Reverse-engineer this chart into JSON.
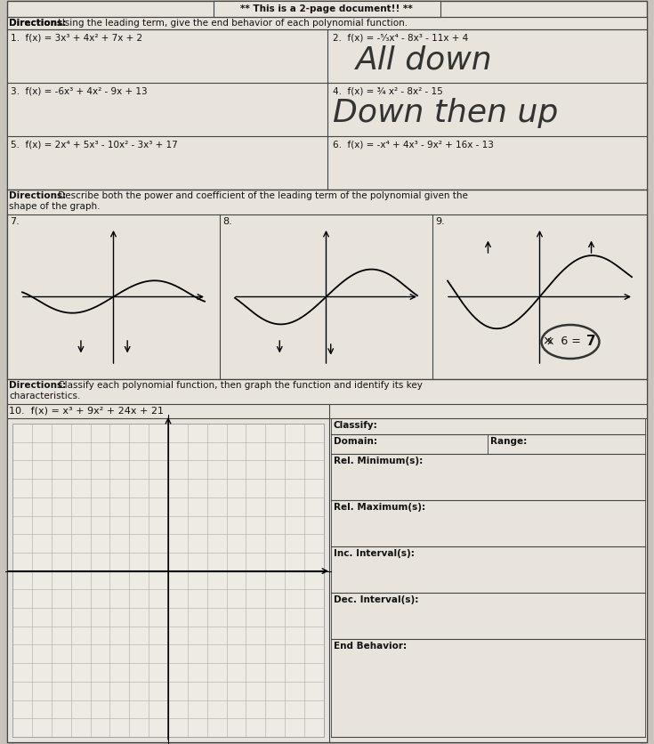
{
  "bg_color": "#c8c4bc",
  "paper_color": "#e8e4dc",
  "title_text": "** This is a 2-page document!! **",
  "s1_dir_bold": "Directions:",
  "s1_dir_rest": " Using the leading term, give the end behavior of each polynomial function.",
  "p1": "1.  f(x) = 3x³ + 4x² + 7x + 2",
  "p2": "2.  f(x) = -⁵⁄₃x⁴ - 8x³ - 11x + 4",
  "p2_answer": "All down",
  "p3": "3.  f(x) = -6x³ + 4x² - 9x + 13",
  "p4": "4.  f(x) = ¾ x² - 8x² - 15",
  "p4_answer": "Down then up",
  "p5": "5.  f(x) = 2x⁴ + 5x³ - 10x² - 3x³ + 17",
  "p6": "6.  f(x) = -x⁴ + 4x³ - 9x² + 16x - 13",
  "s2_dir_bold": "Directions:",
  "s2_dir_rest": " Describe both the power and coefficient of the leading term of the polynomial given the shape of the graph.",
  "s3_dir_bold": "Directions:",
  "s3_dir_rest": " Classify each polynomial function, then graph the function and identify its key characteristics.",
  "p10": "10.  f(x) = x³ + 9x² + 24x + 21",
  "classify": "Classify:",
  "domain": "Domain:",
  "range": "Range:",
  "rel_min": "Rel. Minimum(s):",
  "rel_max": "Rel. Maximum(s):",
  "inc_int": "Inc. Interval(s):",
  "dec_int": "Dec. Interval(s):",
  "end_beh": "End Behavior:",
  "graph7_label": "7.",
  "graph8_label": "8.",
  "graph9_label": "9."
}
